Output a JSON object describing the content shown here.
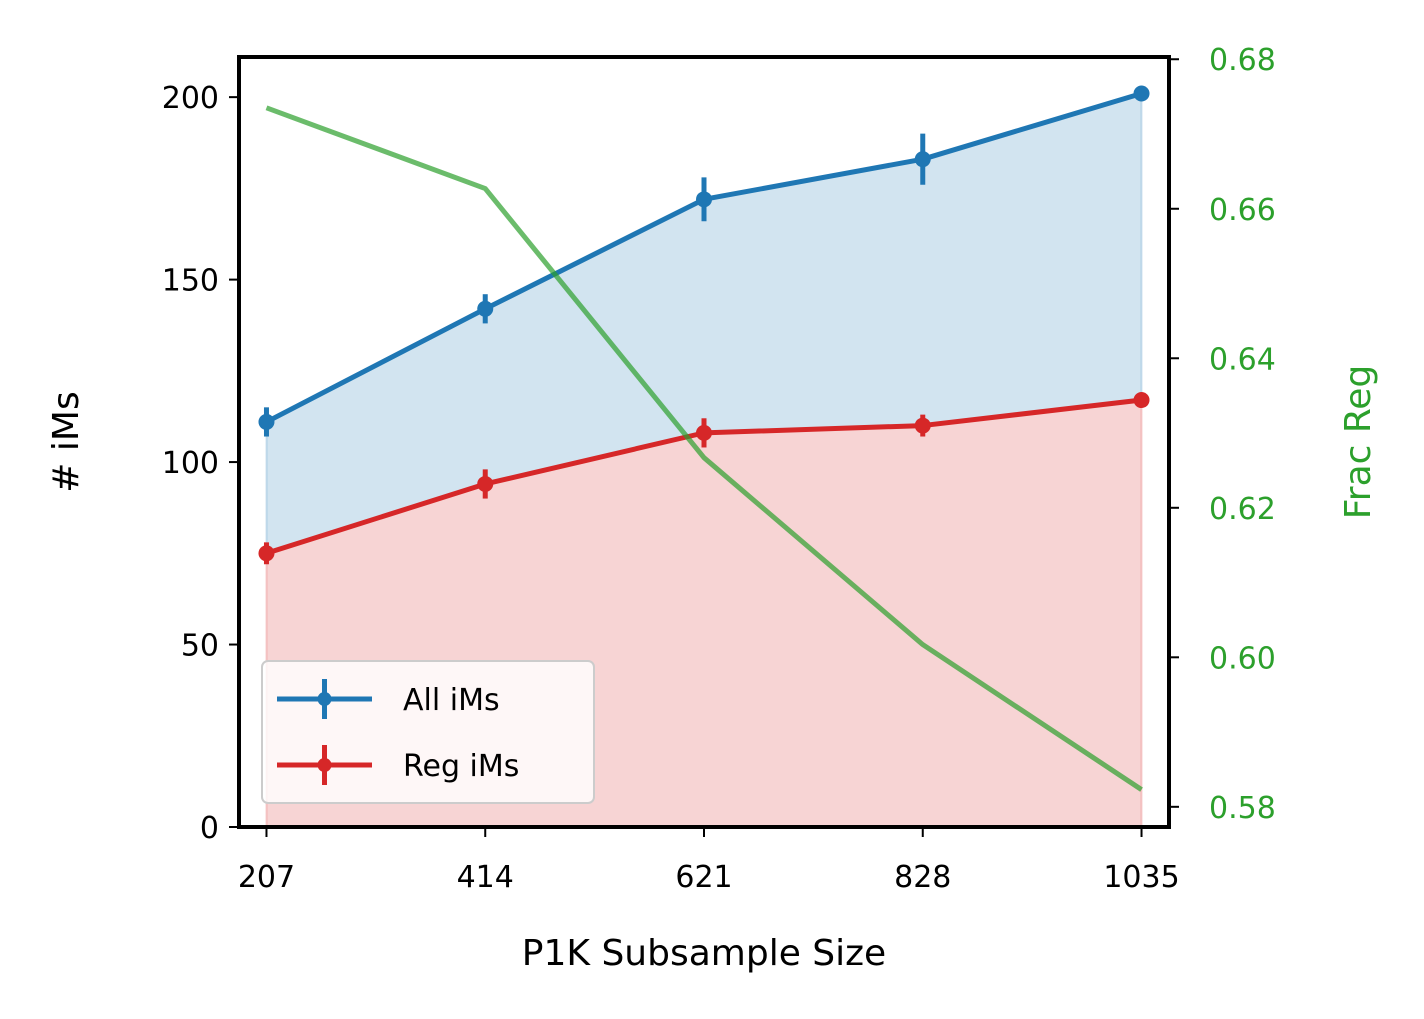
{
  "chart_data": {
    "type": "line",
    "x": [
      207,
      414,
      621,
      828,
      1035
    ],
    "xticks": [
      "207",
      "414",
      "621",
      "828",
      "1035"
    ],
    "xlabel": "P1K Subsample Size",
    "ylabel": "# iMs",
    "ylabel_right": "Frac Reg",
    "ylim": [
      0,
      211
    ],
    "yticks": [
      0,
      50,
      100,
      150,
      200
    ],
    "ylim_right": [
      0.5773,
      0.6803
    ],
    "yticks_right": [
      "0.58",
      "0.60",
      "0.62",
      "0.64",
      "0.66",
      "0.68"
    ],
    "series": [
      {
        "name": "All iMs",
        "color": "#1f77b4",
        "fill_color": "#1f77b4",
        "axis": "left",
        "values": [
          111,
          142,
          172,
          183,
          201
        ],
        "errors": [
          4,
          4,
          6,
          7,
          2
        ]
      },
      {
        "name": "Reg iMs",
        "color": "#d62728",
        "fill_color": "#d62728",
        "axis": "left",
        "values": [
          75,
          94,
          108,
          110,
          117
        ],
        "errors": [
          3,
          4,
          4,
          3,
          2
        ]
      },
      {
        "name": "",
        "color": "#2ca02c",
        "axis": "right",
        "values": [
          0.6735,
          0.6627,
          0.6267,
          0.6017,
          0.5823
        ]
      }
    ],
    "legend_position": "lower-left",
    "grid": false
  }
}
